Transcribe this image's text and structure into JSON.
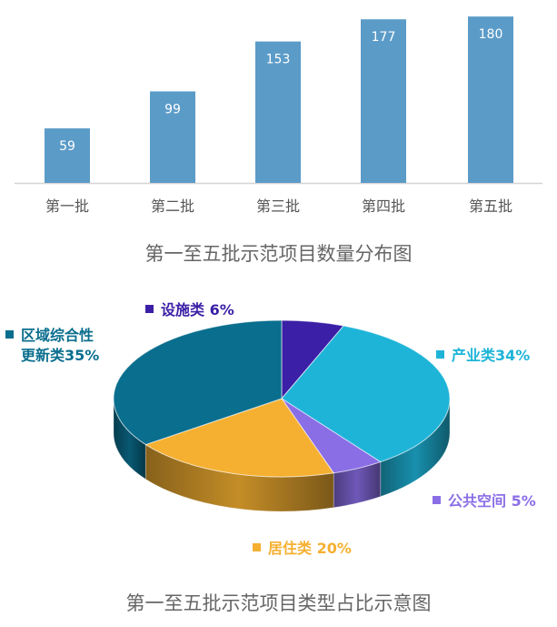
{
  "bar_caption": "第一至五批示范项目数量分布图",
  "pie_caption": "第一至五批示范项目类型占比示意图",
  "chart_data": [
    {
      "type": "bar",
      "categories": [
        "第一批",
        "第二批",
        "第三批",
        "第四批",
        "第五批"
      ],
      "values": [
        59,
        99,
        153,
        177,
        180
      ],
      "data_labels": [
        "59",
        "99",
        "153",
        "177",
        "180"
      ],
      "title": "第一至五批示范项目数量分布图",
      "xlabel": "",
      "ylabel": "",
      "ylim": [
        0,
        190
      ],
      "grid": false,
      "bar_color": "#5b9bc8"
    },
    {
      "type": "pie",
      "title": "第一至五批示范项目类型占比示意图",
      "slices": [
        {
          "label": "设施类",
          "value": 6,
          "legend_text": "设施类 6%",
          "color": "#3b1fa6"
        },
        {
          "label": "产业类",
          "value": 34,
          "legend_text": "产业类34%",
          "color": "#1eb4d8"
        },
        {
          "label": "公共空间",
          "value": 5,
          "legend_text": "公共空间 5%",
          "color": "#8a6ee6"
        },
        {
          "label": "居住类",
          "value": 20,
          "legend_text": "居住类 20%",
          "color": "#f5b031"
        },
        {
          "label": "区域综合性更新类",
          "value": 35,
          "legend_text_line1": "区域综合性",
          "legend_text_line2": "更新类35%",
          "color": "#0a6e8e"
        }
      ]
    }
  ]
}
